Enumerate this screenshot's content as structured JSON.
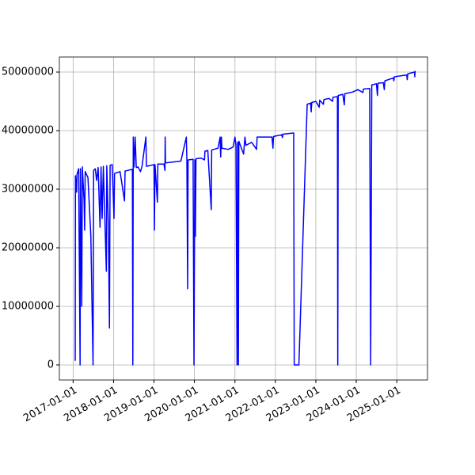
{
  "chart_data": {
    "type": "line",
    "x": [
      "2017-01-20",
      "2017-01-22",
      "2017-02-01",
      "2017-02-05",
      "2017-02-20",
      "2017-03-05",
      "2017-03-08",
      "2017-03-20",
      "2017-03-25",
      "2017-04-10",
      "2017-04-15",
      "2017-04-20",
      "2017-05-15",
      "2017-06-10",
      "2017-06-30",
      "2017-07-05",
      "2017-07-20",
      "2017-08-01",
      "2017-08-15",
      "2017-09-01",
      "2017-09-10",
      "2017-09-20",
      "2017-10-01",
      "2017-10-28",
      "2017-11-01",
      "2017-11-15",
      "2017-11-25",
      "2017-12-01",
      "2017-12-20",
      "2018-01-05",
      "2018-01-10",
      "2018-03-01",
      "2018-04-10",
      "2018-04-15",
      "2018-06-20",
      "2018-06-24",
      "2018-06-28",
      "2018-07-05",
      "2018-07-15",
      "2018-07-25",
      "2018-08-10",
      "2018-09-01",
      "2018-09-15",
      "2018-10-20",
      "2018-10-25",
      "2019-01-01",
      "2019-01-05",
      "2019-01-10",
      "2019-02-01",
      "2019-02-05",
      "2019-04-01",
      "2019-04-10",
      "2019-04-12",
      "2019-04-15",
      "2019-09-01",
      "2019-10-20",
      "2019-10-25",
      "2019-11-01",
      "2019-11-05",
      "2019-12-20",
      "2019-12-28",
      "2020-01-05",
      "2020-01-10",
      "2020-01-15",
      "2020-03-01",
      "2020-04-01",
      "2020-04-05",
      "2020-05-01",
      "2020-06-01",
      "2020-06-05",
      "2020-08-01",
      "2020-08-20",
      "2020-08-25",
      "2020-09-01",
      "2020-09-05",
      "2020-11-01",
      "2020-12-15",
      "2021-01-01",
      "2021-01-10",
      "2021-01-20",
      "2021-01-25",
      "2021-02-01",
      "2021-02-05",
      "2021-03-20",
      "2021-04-01",
      "2021-04-10",
      "2021-06-01",
      "2021-07-15",
      "2021-07-20",
      "2021-10-01",
      "2021-12-01",
      "2021-12-10",
      "2021-12-15",
      "2022-03-01",
      "2022-03-05",
      "2022-03-10",
      "2022-06-15",
      "2022-06-20",
      "2022-08-01",
      "2022-10-15",
      "2022-11-15",
      "2022-11-20",
      "2022-11-25",
      "2023-01-01",
      "2023-02-01",
      "2023-02-05",
      "2023-03-10",
      "2023-03-15",
      "2023-05-01",
      "2023-06-01",
      "2023-06-05",
      "2023-07-15",
      "2023-07-18",
      "2023-07-22",
      "2023-09-01",
      "2023-09-15",
      "2023-09-20",
      "2023-12-01",
      "2024-01-15",
      "2024-03-01",
      "2024-03-05",
      "2024-05-01",
      "2024-05-10",
      "2024-05-20",
      "2024-07-01",
      "2024-07-10",
      "2024-07-15",
      "2024-09-01",
      "2024-09-10",
      "2024-09-15",
      "2024-12-01",
      "2024-12-05",
      "2024-12-10",
      "2025-04-01",
      "2025-04-05",
      "2025-04-10",
      "2025-06-10",
      "2025-06-12",
      "2025-06-15"
    ],
    "values": [
      700000,
      32300000,
      29500000,
      32500000,
      33500000,
      0,
      33500000,
      10000000,
      33800000,
      28000000,
      23000000,
      33000000,
      32000000,
      22000000,
      0,
      33200000,
      33500000,
      31500000,
      33700000,
      23500000,
      33800000,
      25000000,
      33900000,
      16000000,
      34000000,
      24000000,
      6300000,
      34100000,
      34200000,
      25000000,
      32700000,
      33000000,
      28000000,
      33100000,
      33400000,
      0,
      38900000,
      33800000,
      38900000,
      33700000,
      33800000,
      33000000,
      33900000,
      38900000,
      33900000,
      34200000,
      23000000,
      34200000,
      27800000,
      34300000,
      34300000,
      33200000,
      38900000,
      34500000,
      34800000,
      38900000,
      34900000,
      13000000,
      35000000,
      35100000,
      0,
      35000000,
      22000000,
      35200000,
      35300000,
      35000000,
      36500000,
      36600000,
      26500000,
      36700000,
      37000000,
      38900000,
      35500000,
      38900000,
      37000000,
      36800000,
      37200000,
      38900000,
      37500000,
      0,
      38000000,
      0,
      38200000,
      36000000,
      38900000,
      37500000,
      38000000,
      36800000,
      38900000,
      38900000,
      38900000,
      37000000,
      39000000,
      39300000,
      38800000,
      39400000,
      39600000,
      0,
      0,
      44500000,
      44700000,
      43200000,
      44800000,
      45000000,
      44000000,
      45200000,
      44500000,
      45300000,
      45500000,
      45000000,
      45700000,
      45800000,
      0,
      46000000,
      46200000,
      44400000,
      46300000,
      46600000,
      47000000,
      46500000,
      47100000,
      47200000,
      0,
      47800000,
      48000000,
      46000000,
      48100000,
      48200000,
      47000000,
      48500000,
      49000000,
      48500000,
      49200000,
      49500000,
      48700000,
      49700000,
      50000000,
      49200000,
      50200000
    ],
    "color": "#0000ff",
    "xlim": [
      "2016-08-30",
      "2025-10-05"
    ],
    "xticks": [
      "2017-01-01",
      "2018-01-01",
      "2019-01-01",
      "2020-01-01",
      "2021-01-01",
      "2022-01-01",
      "2023-01-01",
      "2024-01-01",
      "2025-01-01"
    ],
    "ylim": [
      -2570000,
      52570000
    ],
    "yticks": [
      0,
      10000000,
      20000000,
      30000000,
      40000000,
      50000000
    ],
    "grid": true
  }
}
